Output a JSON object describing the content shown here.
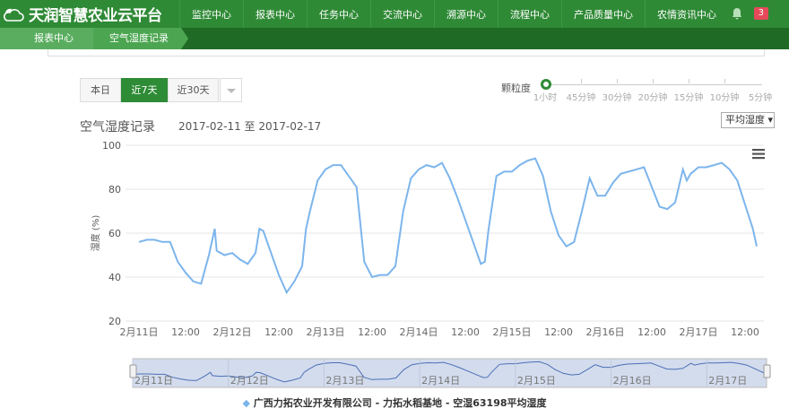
{
  "app": {
    "title": "天润智慧农业云平台",
    "notifications": "3"
  },
  "nav": [
    "监控中心",
    "报表中心",
    "任务中心",
    "交流中心",
    "溯源中心",
    "流程中心",
    "产品质量中心",
    "农情资讯中心"
  ],
  "breadcrumb": [
    "报表中心",
    "空气湿度记录"
  ],
  "range_buttons": {
    "today": "本日",
    "week": "近7天",
    "month": "近30天",
    "active": "近7天"
  },
  "granularity": {
    "label": "颗粒度",
    "options": [
      "1小时",
      "45分钟",
      "30分钟",
      "20分钟",
      "15分钟",
      "10分钟",
      "5分钟"
    ],
    "selected": "1小时"
  },
  "metric_select": "平均湿度 ▾",
  "header": {
    "title": "空气湿度记录",
    "range": "2017-02-11 至 2017-02-17"
  },
  "colors": {
    "brand": "#2f8a36",
    "line": "#7cb5ec",
    "badge": "#e64a5a"
  },
  "chart_data": {
    "type": "line",
    "ylabel": "湿度 (%)",
    "ylim": [
      20,
      100
    ],
    "yticks": [
      20,
      40,
      60,
      80,
      100
    ],
    "xticks": [
      "2月11日",
      "12:00",
      "2月12日",
      "12:00",
      "2月13日",
      "12:00",
      "2月14日",
      "12:00",
      "2月15日",
      "12:00",
      "2月16日",
      "12:00",
      "2月17日",
      "12:00"
    ],
    "navigator_ticks": [
      "2月11日",
      "2月12日",
      "2月13日",
      "2月14日",
      "2月15日",
      "2月16日",
      "2月17日"
    ],
    "grid": true,
    "legend": "bottom",
    "series": [
      {
        "name": "广西力拓农业开发有限公司 - 力拓水稻基地 - 空湿63198平均湿度",
        "points": [
          [
            "2017-02-11 00:00",
            56
          ],
          [
            "2017-02-11 02:00",
            57
          ],
          [
            "2017-02-11 04:00",
            57
          ],
          [
            "2017-02-11 06:00",
            56
          ],
          [
            "2017-02-11 08:00",
            56
          ],
          [
            "2017-02-11 10:00",
            47
          ],
          [
            "2017-02-11 12:00",
            42
          ],
          [
            "2017-02-11 14:00",
            38
          ],
          [
            "2017-02-11 16:00",
            37
          ],
          [
            "2017-02-11 18:00",
            50
          ],
          [
            "2017-02-11 19:30",
            62
          ],
          [
            "2017-02-11 20:00",
            52
          ],
          [
            "2017-02-11 22:00",
            50
          ],
          [
            "2017-02-12 00:00",
            51
          ],
          [
            "2017-02-12 02:00",
            48
          ],
          [
            "2017-02-12 04:00",
            46
          ],
          [
            "2017-02-12 06:00",
            51
          ],
          [
            "2017-02-12 07:00",
            62
          ],
          [
            "2017-02-12 08:00",
            61
          ],
          [
            "2017-02-12 10:00",
            51
          ],
          [
            "2017-02-12 12:00",
            41
          ],
          [
            "2017-02-12 14:00",
            33
          ],
          [
            "2017-02-12 16:00",
            38
          ],
          [
            "2017-02-12 18:00",
            45
          ],
          [
            "2017-02-12 19:00",
            62
          ],
          [
            "2017-02-12 20:00",
            70
          ],
          [
            "2017-02-12 22:00",
            84
          ],
          [
            "2017-02-13 00:00",
            89
          ],
          [
            "2017-02-13 02:00",
            91
          ],
          [
            "2017-02-13 04:00",
            91
          ],
          [
            "2017-02-13 06:00",
            86
          ],
          [
            "2017-02-13 08:00",
            81
          ],
          [
            "2017-02-13 10:00",
            47
          ],
          [
            "2017-02-13 12:00",
            40
          ],
          [
            "2017-02-13 14:00",
            41
          ],
          [
            "2017-02-13 16:00",
            41
          ],
          [
            "2017-02-13 18:00",
            45
          ],
          [
            "2017-02-13 20:00",
            70
          ],
          [
            "2017-02-13 22:00",
            85
          ],
          [
            "2017-02-14 00:00",
            89
          ],
          [
            "2017-02-14 02:00",
            91
          ],
          [
            "2017-02-14 04:00",
            90
          ],
          [
            "2017-02-14 06:00",
            92
          ],
          [
            "2017-02-14 08:00",
            85
          ],
          [
            "2017-02-14 10:00",
            76
          ],
          [
            "2017-02-14 12:00",
            66
          ],
          [
            "2017-02-14 14:00",
            56
          ],
          [
            "2017-02-14 16:00",
            46
          ],
          [
            "2017-02-14 17:00",
            47
          ],
          [
            "2017-02-14 18:00",
            62
          ],
          [
            "2017-02-14 20:00",
            86
          ],
          [
            "2017-02-14 22:00",
            88
          ],
          [
            "2017-02-15 00:00",
            88
          ],
          [
            "2017-02-15 02:00",
            91
          ],
          [
            "2017-02-15 04:00",
            93
          ],
          [
            "2017-02-15 06:00",
            94
          ],
          [
            "2017-02-15 08:00",
            86
          ],
          [
            "2017-02-15 10:00",
            70
          ],
          [
            "2017-02-15 12:00",
            59
          ],
          [
            "2017-02-15 14:00",
            54
          ],
          [
            "2017-02-15 16:00",
            56
          ],
          [
            "2017-02-15 18:00",
            70
          ],
          [
            "2017-02-15 20:00",
            85
          ],
          [
            "2017-02-15 22:00",
            77
          ],
          [
            "2017-02-16 00:00",
            77
          ],
          [
            "2017-02-16 02:00",
            83
          ],
          [
            "2017-02-16 04:00",
            87
          ],
          [
            "2017-02-16 06:00",
            88
          ],
          [
            "2017-02-16 08:00",
            89
          ],
          [
            "2017-02-16 10:00",
            90
          ],
          [
            "2017-02-16 12:00",
            81
          ],
          [
            "2017-02-16 14:00",
            72
          ],
          [
            "2017-02-16 16:00",
            71
          ],
          [
            "2017-02-16 18:00",
            74
          ],
          [
            "2017-02-16 20:00",
            89
          ],
          [
            "2017-02-16 21:00",
            84
          ],
          [
            "2017-02-16 22:00",
            87
          ],
          [
            "2017-02-17 00:00",
            90
          ],
          [
            "2017-02-17 02:00",
            90
          ],
          [
            "2017-02-17 04:00",
            91
          ],
          [
            "2017-02-17 06:00",
            92
          ],
          [
            "2017-02-17 08:00",
            89
          ],
          [
            "2017-02-17 10:00",
            84
          ],
          [
            "2017-02-17 12:00",
            73
          ],
          [
            "2017-02-17 14:00",
            62
          ],
          [
            "2017-02-17 15:00",
            54
          ]
        ]
      }
    ]
  }
}
